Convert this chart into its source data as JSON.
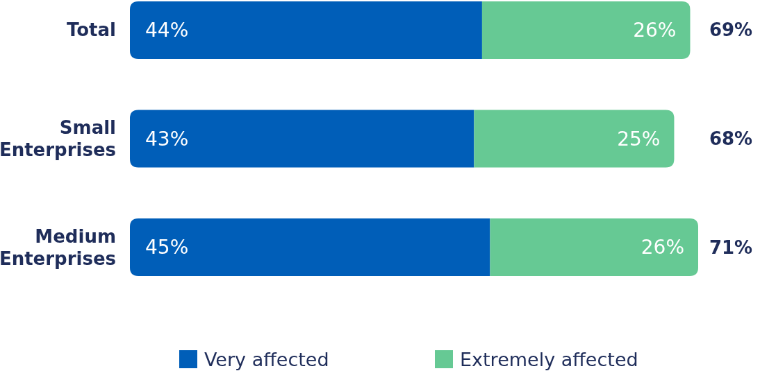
{
  "chart_data": {
    "type": "bar",
    "orientation": "horizontal",
    "stacked": true,
    "categories": [
      "Total",
      "Small Enterprises",
      "Medium Enterprises"
    ],
    "series": [
      {
        "name": "Very affected",
        "color": "#005eb8",
        "values": [
          44,
          43,
          45
        ],
        "value_labels": [
          "44%",
          "43%",
          "45%"
        ]
      },
      {
        "name": "Extremely affected",
        "color": "#66c994",
        "values": [
          26,
          25,
          26
        ],
        "value_labels": [
          "26%",
          "25%",
          "26%"
        ]
      }
    ],
    "totals": [
      "69%",
      "68%",
      "71%"
    ],
    "legend": "bottom"
  }
}
